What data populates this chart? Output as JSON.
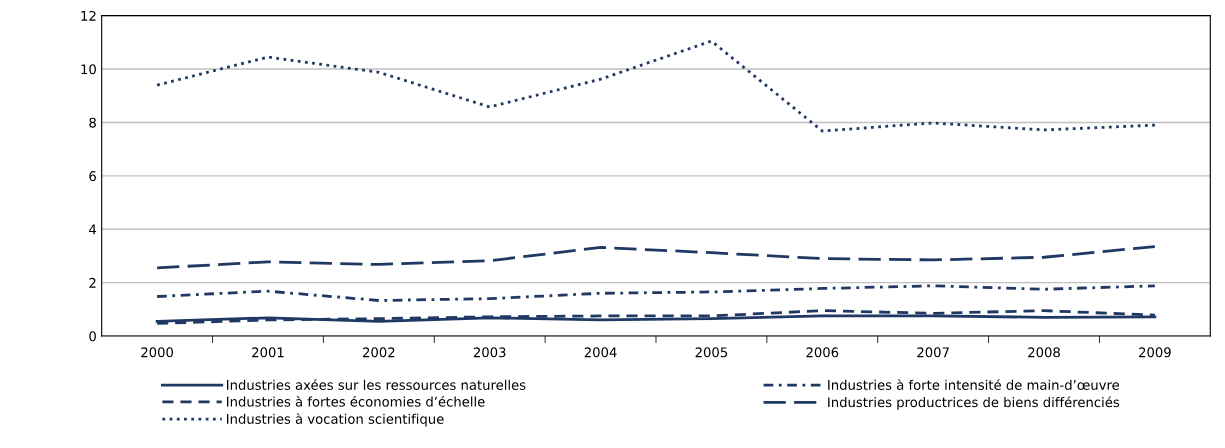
{
  "chart_data": {
    "type": "line",
    "categories": [
      "2000",
      "2001",
      "2002",
      "2003",
      "2004",
      "2005",
      "2006",
      "2007",
      "2008",
      "2009"
    ],
    "ylim": [
      0,
      12
    ],
    "yticks": [
      0,
      2,
      4,
      6,
      8,
      10,
      12
    ],
    "grid": "y",
    "legend": "bottom",
    "marker": "none",
    "series": [
      {
        "name": "Industries axées sur les ressources naturelles",
        "color": "#1f3864",
        "line_style": "solid",
        "values": [
          0.55,
          0.68,
          0.55,
          0.68,
          0.6,
          0.65,
          0.75,
          0.75,
          0.7,
          0.72
        ]
      },
      {
        "name": "Industries à forte intensité de main-d’œuvre",
        "color": "#1f3864",
        "line_style": "dashdot",
        "values": [
          1.48,
          1.68,
          1.33,
          1.4,
          1.6,
          1.65,
          1.78,
          1.88,
          1.75,
          1.88
        ]
      },
      {
        "name": "Industries à fortes économies d’échelle",
        "color": "#1f3864",
        "line_style": "dashed",
        "values": [
          0.47,
          0.6,
          0.65,
          0.72,
          0.75,
          0.75,
          0.95,
          0.85,
          0.95,
          0.78
        ]
      },
      {
        "name": "Industries productrices de biens différenciés",
        "color": "#1f3864",
        "line_style": "longdash",
        "values": [
          2.55,
          2.78,
          2.68,
          2.82,
          3.32,
          3.12,
          2.9,
          2.85,
          2.95,
          3.35
        ]
      },
      {
        "name": "Industries à vocation scientifique",
        "color": "#1f3864",
        "line_style": "dotted",
        "values": [
          9.4,
          10.45,
          9.88,
          8.58,
          9.62,
          11.05,
          7.68,
          7.98,
          7.72,
          7.9
        ]
      }
    ]
  }
}
